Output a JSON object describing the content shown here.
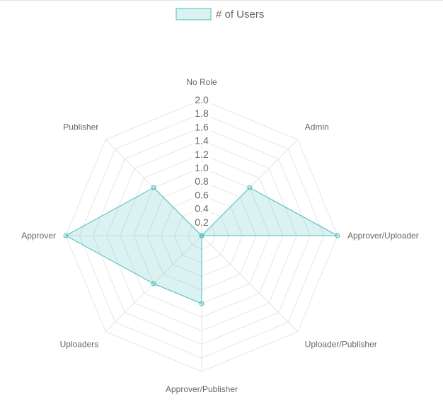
{
  "chart_data": {
    "type": "radar",
    "title": "",
    "categories": [
      "No Role",
      "Admin",
      "Approver/Uploader",
      "Uploader/Publisher",
      "Approver/Publisher",
      "Uploaders",
      "Approver",
      "Publisher"
    ],
    "series": [
      {
        "name": "# of Users",
        "values": [
          0,
          1,
          2,
          0,
          1,
          1,
          2,
          1
        ]
      }
    ],
    "r_range": [
      0,
      2.0
    ],
    "ticks": [
      "2.0",
      "1.8",
      "1.6",
      "1.4",
      "1.2",
      "1.0",
      "0.8",
      "0.6",
      "0.4",
      "0.2"
    ],
    "tick_values": [
      2.0,
      1.8,
      1.6,
      1.4,
      1.2,
      1.0,
      0.8,
      0.6,
      0.4,
      0.2
    ],
    "grid": true,
    "legend_position": "top",
    "colors": {
      "line": "#4bc0c0",
      "fill": "rgba(75,192,192,0.2)",
      "grid": "#e6e6e6",
      "text": "#666666"
    }
  }
}
